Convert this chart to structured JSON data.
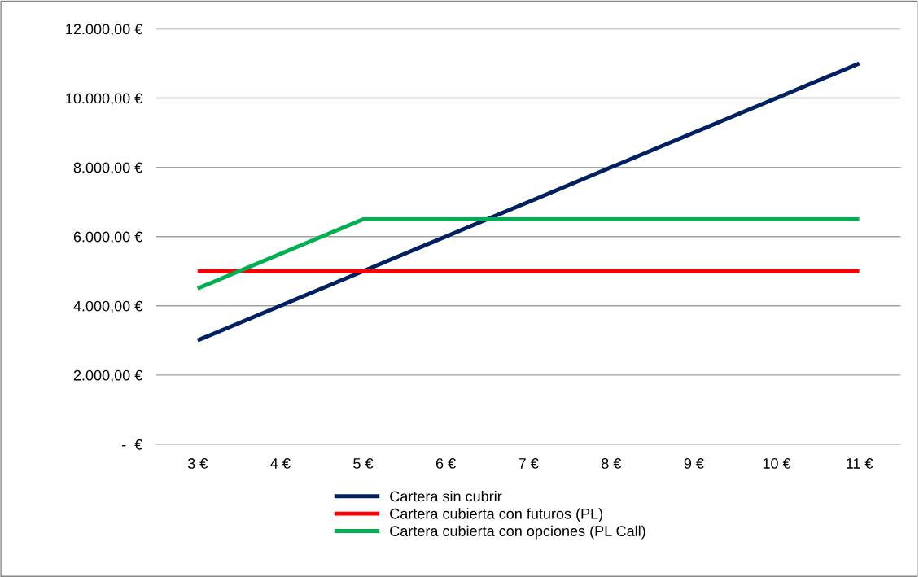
{
  "chart_data": {
    "type": "line",
    "categories": [
      "3 €",
      "4 €",
      "5 €",
      "6 €",
      "7 €",
      "8 €",
      "9 €",
      "10 €",
      "11 €"
    ],
    "series": [
      {
        "name": "Cartera sin cubrir",
        "color": "#002060",
        "values": [
          3000,
          4000,
          5000,
          6000,
          7000,
          8000,
          9000,
          10000,
          11000
        ]
      },
      {
        "name": "Cartera cubierta con futuros (PL)",
        "color": "#ff0000",
        "values": [
          5000,
          5000,
          5000,
          5000,
          5000,
          5000,
          5000,
          5000,
          5000
        ]
      },
      {
        "name": "Cartera cubierta con opciones (PL Call)",
        "color": "#00b050",
        "values": [
          4500,
          5500,
          6500,
          6500,
          6500,
          6500,
          6500,
          6500,
          6500
        ]
      }
    ],
    "ylim": [
      0,
      12000
    ],
    "yticks": [
      {
        "value": 0,
        "label": "-  €"
      },
      {
        "value": 2000,
        "label": "2.000,00 €"
      },
      {
        "value": 4000,
        "label": "4.000,00 €"
      },
      {
        "value": 6000,
        "label": "6.000,00 €"
      },
      {
        "value": 8000,
        "label": "8.000,00 €"
      },
      {
        "value": 10000,
        "label": "10.000,00 €"
      },
      {
        "value": 12000,
        "label": "12.000,00 €"
      }
    ],
    "grid": "y",
    "legend": "bottom",
    "marker": "none",
    "line_style": "solid"
  }
}
